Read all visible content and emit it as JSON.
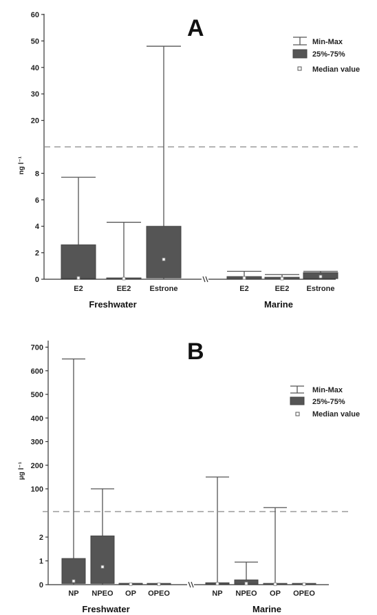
{
  "chart_data": [
    {
      "type": "boxplot",
      "panel": "A",
      "ylabel": "ng l⁻¹",
      "y_segments": [
        {
          "range": [
            0,
            10
          ],
          "ticks": [
            0,
            2,
            4,
            6,
            8
          ]
        },
        {
          "range": [
            10,
            60
          ],
          "ticks": [
            20,
            30,
            40,
            50,
            60
          ]
        }
      ],
      "legend": {
        "placement": "top-right",
        "entries": [
          "Min-Max",
          "25%-75%",
          "Median value"
        ]
      },
      "groups": [
        {
          "name": "Freshwater",
          "items": [
            {
              "label": "E2",
              "min": 0,
              "q1": 0.05,
              "median": 0.1,
              "q3": 2.6,
              "max": 7.7
            },
            {
              "label": "EE2",
              "min": 0,
              "q1": 0.02,
              "median": 0.05,
              "q3": 0.1,
              "max": 4.3
            },
            {
              "label": "Estrone",
              "min": 0,
              "q1": 0.1,
              "median": 1.5,
              "q3": 4.0,
              "max": 48
            }
          ]
        },
        {
          "name": "Marine",
          "items": [
            {
              "label": "E2",
              "min": 0,
              "q1": 0.02,
              "median": 0.1,
              "q3": 0.2,
              "max": 0.6
            },
            {
              "label": "EE2",
              "min": 0,
              "q1": 0.01,
              "median": 0.05,
              "q3": 0.15,
              "max": 0.35
            },
            {
              "label": "Estrone",
              "min": 0,
              "q1": 0.05,
              "median": 0.2,
              "q3": 0.5,
              "max": 0.6
            }
          ]
        }
      ]
    },
    {
      "type": "boxplot",
      "panel": "B",
      "ylabel": "µg l⁻¹",
      "y_segments": [
        {
          "range": [
            0,
            3
          ],
          "ticks": [
            0,
            1,
            2
          ]
        },
        {
          "range": [
            3,
            700
          ],
          "ticks": [
            100,
            200,
            300,
            400,
            500,
            600,
            700
          ]
        }
      ],
      "legend": {
        "placement": "top-right",
        "entries": [
          "Min-Max",
          "25%-75%",
          "Median value"
        ]
      },
      "groups": [
        {
          "name": "Freshwater",
          "items": [
            {
              "label": "NP",
              "min": 0,
              "q1": 0.05,
              "median": 0.15,
              "q3": 1.1,
              "max": 650
            },
            {
              "label": "NPEO",
              "min": 0,
              "q1": 0.05,
              "median": 0.75,
              "q3": 2.05,
              "max": 100
            },
            {
              "label": "OP",
              "min": 0,
              "q1": 0.01,
              "median": 0.02,
              "q3": 0.03,
              "max": 0.05
            },
            {
              "label": "OPEO",
              "min": 0,
              "q1": 0.01,
              "median": 0.02,
              "q3": 0.03,
              "max": 0.04
            }
          ]
        },
        {
          "name": "Marine",
          "items": [
            {
              "label": "NP",
              "min": 0,
              "q1": 0.02,
              "median": 0.04,
              "q3": 0.08,
              "max": 150
            },
            {
              "label": "NPEO",
              "min": 0,
              "q1": 0.02,
              "median": 0.05,
              "q3": 0.2,
              "max": 0.95
            },
            {
              "label": "OP",
              "min": 0,
              "q1": 0.01,
              "median": 0.02,
              "q3": 0.03,
              "max": 20
            },
            {
              "label": "OPEO",
              "min": 0,
              "q1": 0.01,
              "median": 0.02,
              "q3": 0.02,
              "max": 0.03
            }
          ]
        }
      ]
    }
  ],
  "colors": {
    "box": "#555555",
    "whisker": "#555555",
    "median": "#ffffff",
    "dash": "#888888"
  }
}
